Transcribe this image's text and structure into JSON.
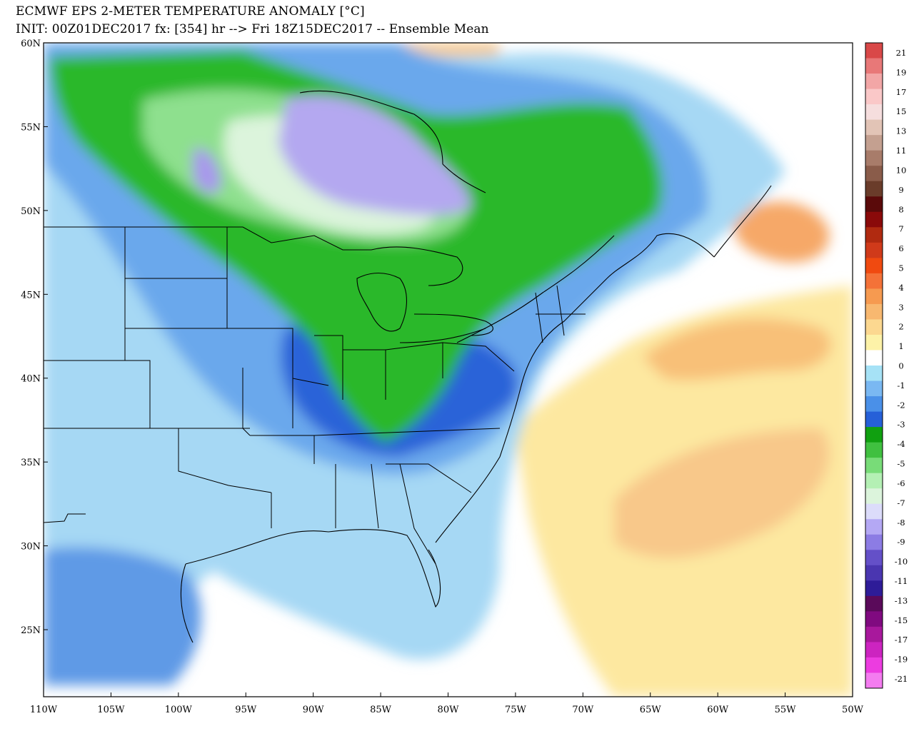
{
  "title": "ECMWF EPS 2-METER TEMPERATURE ANOMALY [°C]",
  "subtitle": "INIT: 00Z01DEC2017 fx: [354] hr --> Fri 18Z15DEC2017 -- Ensemble Mean",
  "map": {
    "lat_labels": [
      "60N",
      "55N",
      "50N",
      "45N",
      "40N",
      "35N",
      "30N",
      "25N"
    ],
    "lon_labels": [
      "110W",
      "105W",
      "100W",
      "95W",
      "90W",
      "85W",
      "80W",
      "75W",
      "70W",
      "65W",
      "60W",
      "55W",
      "50W"
    ]
  },
  "colorbar": {
    "levels": [
      "21",
      "19",
      "17",
      "15",
      "13",
      "11",
      "10",
      "9",
      "8",
      "7",
      "6",
      "5",
      "4",
      "3",
      "2",
      "1",
      "0",
      "-1",
      "-2",
      "-3",
      "-4",
      "-5",
      "-6",
      "-7",
      "-8",
      "-9",
      "-10",
      "-11",
      "-13",
      "-15",
      "-17",
      "-19",
      "-21"
    ],
    "colors": [
      "#d94848",
      "#e87878",
      "#f2a6a6",
      "#fac8c8",
      "#f6dede",
      "#e2c4b6",
      "#c4a090",
      "#a87c6a",
      "#8a5c4a",
      "#6a3c2a",
      "#5a0a0a",
      "#8a0a0a",
      "#b02a10",
      "#d03a1a",
      "#f04a10",
      "#f47238",
      "#f69a50",
      "#f8b870",
      "#fcd890",
      "#fdf2a8",
      "#ffffff",
      "#a6e2f6",
      "#7ab8f2",
      "#4a90e8",
      "#2660d8",
      "#10a010",
      "#40c040",
      "#78dc78",
      "#b4f0b4",
      "#dcf4dc",
      "#dcdcfa",
      "#b4a8f4",
      "#8c7ce4",
      "#6450c8",
      "#4a36b0",
      "#2e1c98",
      "#5a0a5a",
      "#800a80",
      "#a8189c",
      "#cc24c0",
      "#ec3ce0",
      "#f47cf0"
    ]
  }
}
